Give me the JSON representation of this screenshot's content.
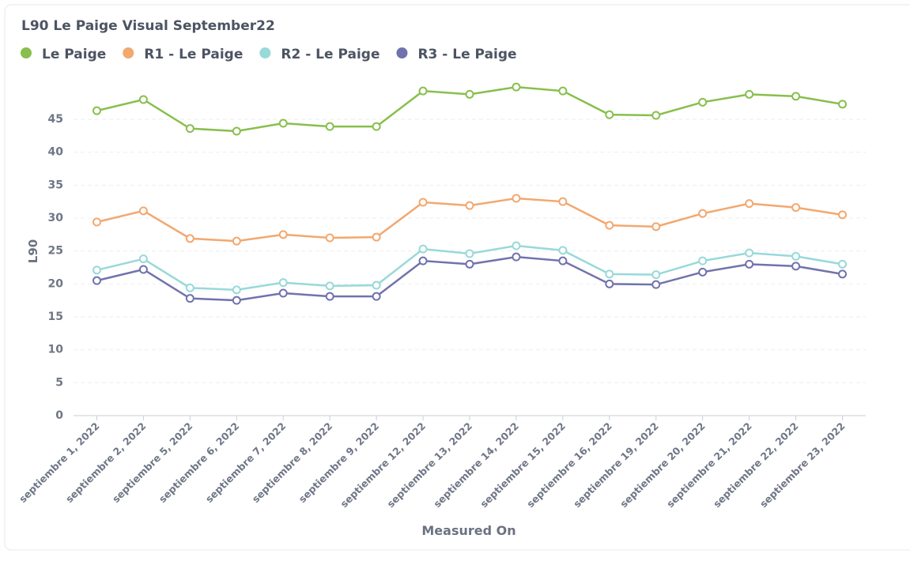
{
  "chart_data": {
    "type": "line",
    "title": "L90 Le Paige Visual September22",
    "x_label": "Measured On",
    "y_label": "L90",
    "categories": [
      "septiembre 1, 2022",
      "septiembre 2, 2022",
      "septiembre 5, 2022",
      "septiembre 6, 2022",
      "septiembre 7, 2022",
      "septiembre 8, 2022",
      "septiembre 9, 2022",
      "septiembre 12, 2022",
      "septiembre 13, 2022",
      "septiembre 14, 2022",
      "septiembre 15, 2022",
      "septiembre 16, 2022",
      "septiembre 19, 2022",
      "septiembre 20, 2022",
      "septiembre 21, 2022",
      "septiembre 22, 2022",
      "septiembre 23, 2022"
    ],
    "series": [
      {
        "name": "Le Paige",
        "color": "#88bf4d",
        "values": [
          46.3,
          48.0,
          43.6,
          43.2,
          44.4,
          43.9,
          43.9,
          49.3,
          48.8,
          49.9,
          49.3,
          45.7,
          45.6,
          47.6,
          48.8,
          48.5,
          47.3
        ]
      },
      {
        "name": "R1 - Le Paige",
        "color": "#f2a86f",
        "values": [
          29.4,
          31.1,
          26.9,
          26.5,
          27.5,
          27.0,
          27.1,
          32.4,
          31.9,
          33.0,
          32.5,
          28.9,
          28.7,
          30.7,
          32.2,
          31.6,
          30.5
        ]
      },
      {
        "name": "R2 - Le Paige",
        "color": "#98d9d9",
        "values": [
          22.1,
          23.8,
          19.4,
          19.1,
          20.2,
          19.7,
          19.8,
          25.3,
          24.6,
          25.8,
          25.1,
          21.5,
          21.4,
          23.5,
          24.7,
          24.2,
          23.0
        ]
      },
      {
        "name": "R3 - Le Paige",
        "color": "#7172ad",
        "values": [
          20.5,
          22.2,
          17.8,
          17.5,
          18.6,
          18.1,
          18.1,
          23.5,
          23.0,
          24.1,
          23.5,
          20.0,
          19.9,
          21.8,
          23.0,
          22.7,
          21.5
        ]
      }
    ],
    "ylim": [
      0,
      51
    ],
    "yticks": [
      0,
      5,
      10,
      15,
      20,
      25,
      30,
      35,
      40,
      45
    ],
    "grid": true
  }
}
